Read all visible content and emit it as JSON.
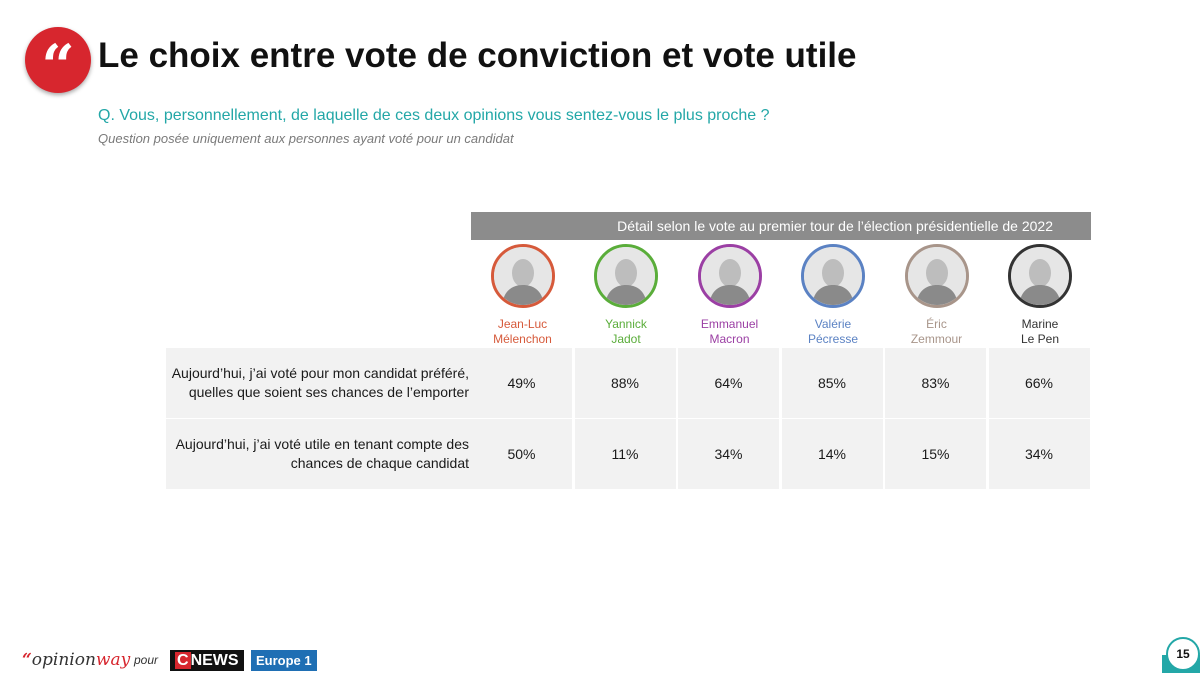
{
  "title": "Le choix entre vote de conviction et vote utile",
  "quote_glyph": "“",
  "question": "Q. Vous, personnellement, de laquelle de ces deux opinions vous sentez-vous le plus proche ?",
  "note": "Question posée uniquement aux personnes ayant voté pour un candidat",
  "footer": {
    "logo_quote": "“",
    "logo_opinion": "opinion",
    "logo_way": "way",
    "pour": "pour",
    "cnews_c": "C",
    "cnews_news": "NEWS",
    "europe1": "Europe 1",
    "page_number": "15"
  },
  "colors": {
    "accent_red": "#d7262e",
    "teal": "#23a7a7",
    "header_grey": "#8c8c8c"
  },
  "chart_data": {
    "type": "table",
    "title": "Le choix entre vote de conviction et vote utile",
    "column_group_header": "Détail selon le vote au premier tour de l’élection présidentielle de 2022",
    "columns": [
      {
        "first": "Jean-Luc",
        "last": "Mélenchon",
        "color": "#d65a3b",
        "icon": "portrait-melenchon"
      },
      {
        "first": "Yannick",
        "last": "Jadot",
        "color": "#5aad3a",
        "icon": "portrait-jadot"
      },
      {
        "first": "Emmanuel",
        "last": "Macron",
        "color": "#9b3fa4",
        "icon": "portrait-macron"
      },
      {
        "first": "Valérie",
        "last": "Pécresse",
        "color": "#5b82c3",
        "icon": "portrait-pecresse"
      },
      {
        "first": "Éric",
        "last": "Zemmour",
        "color": "#a8958a",
        "icon": "portrait-zemmour"
      },
      {
        "first": "Marine",
        "last": "Le Pen",
        "color": "#333333",
        "icon": "portrait-le-pen"
      }
    ],
    "rows": [
      {
        "label_line1": "Aujourd’hui, j’ai voté pour mon candidat préféré,",
        "label_line2": "quelles que soient ses chances de l’emporter",
        "values": [
          "49%",
          "88%",
          "64%",
          "85%",
          "83%",
          "66%"
        ]
      },
      {
        "label_line1": "Aujourd’hui, j’ai voté utile en tenant compte des",
        "label_line2": "chances de chaque candidat",
        "values": [
          "50%",
          "11%",
          "34%",
          "14%",
          "15%",
          "34%"
        ]
      }
    ]
  }
}
